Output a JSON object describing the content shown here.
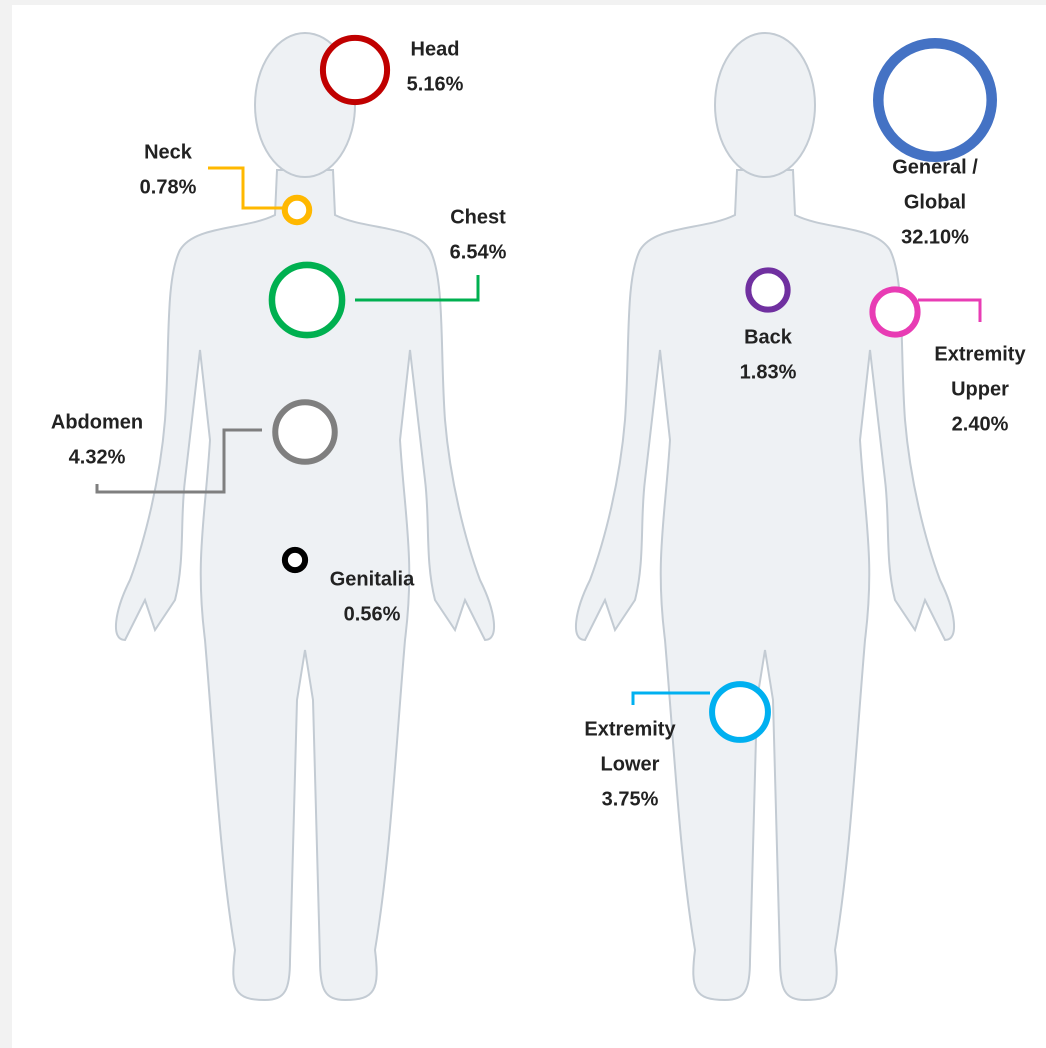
{
  "regions": [
    {
      "label": [
        "Head"
      ],
      "value": 5.16,
      "value_label": "5.16%",
      "color": "#c00000"
    },
    {
      "label": [
        "Neck"
      ],
      "value": 0.78,
      "value_label": "0.78%",
      "color": "#ffb800"
    },
    {
      "label": [
        "Chest"
      ],
      "value": 6.54,
      "value_label": "6.54%",
      "color": "#00b050"
    },
    {
      "label": [
        "Abdomen"
      ],
      "value": 4.32,
      "value_label": "4.32%",
      "color": "#7f7f7f"
    },
    {
      "label": [
        "Genitalia"
      ],
      "value": 0.56,
      "value_label": "0.56%",
      "color": "#000000"
    },
    {
      "label": [
        "General /",
        "Global"
      ],
      "value": 32.1,
      "value_label": "32.10%",
      "color": "#4472c4"
    },
    {
      "label": [
        "Back"
      ],
      "value": 1.83,
      "value_label": "1.83%",
      "color": "#7030a0"
    },
    {
      "label": [
        "Extremity",
        "Upper"
      ],
      "value": 2.4,
      "value_label": "2.40%",
      "color": "#e83cb4"
    },
    {
      "label": [
        "Extremity",
        "Lower"
      ],
      "value": 3.75,
      "value_label": "3.75%",
      "color": "#00b0f0"
    }
  ]
}
